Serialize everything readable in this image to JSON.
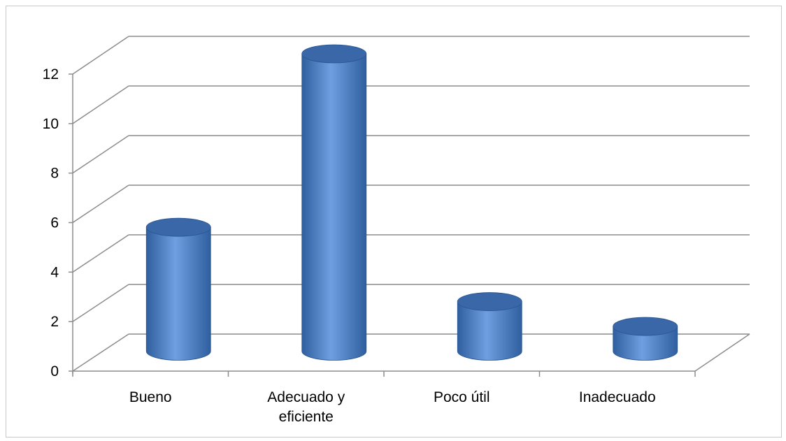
{
  "chart_data": {
    "type": "bar",
    "style": "3d-cylinder",
    "categories": [
      [
        "Bueno"
      ],
      [
        "Adecuado y",
        "eficiente"
      ],
      [
        "Poco útil"
      ],
      [
        "Inadecuado"
      ]
    ],
    "values": [
      5,
      12,
      2,
      1
    ],
    "ylim": [
      0,
      12
    ],
    "yticks": [
      "0",
      "2",
      "4",
      "6",
      "8",
      "10",
      "12"
    ],
    "grid": true,
    "legend": "none",
    "colors": {
      "bar_body_dark": "#2f5f9e",
      "bar_body_light": "#6f9fe0",
      "bar_top": "#3a67a8",
      "gridline": "#8c8c8c",
      "axis": "#8c8c8c"
    }
  }
}
